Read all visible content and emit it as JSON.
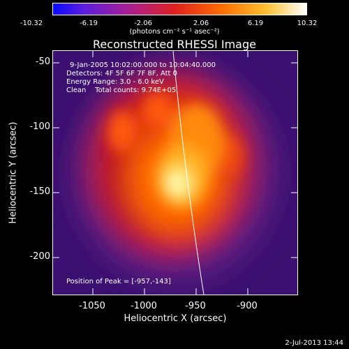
{
  "colorbar": {
    "tick_labels": [
      "-10.32",
      "-6.19",
      "-2.06",
      "2.06",
      "6.19",
      "10.32"
    ],
    "unit_label": "(photons cm⁻² s⁻¹ asec⁻²)",
    "colors": [
      "#1010ff",
      "#7a20c0",
      "#d0201a",
      "#ff7000",
      "#ffd040",
      "#ffffff"
    ]
  },
  "title": "Reconstructed RHESSI Image",
  "annotations": {
    "time_range": "9-Jan-2005 10:02:00.000 to 10:04:40.000",
    "detectors": "Detectors: 4F 5F 6F 7F 8F, Att 0",
    "energy_range": "Energy Range: 3.0 - 6.0 keV",
    "clean_counts": "Clean    Total counts: 9.74E+05",
    "peak_position": "Position of Peak = [-957,-143]"
  },
  "axes": {
    "xlabel": "Heliocentric X (arcsec)",
    "ylabel": "Heliocentric Y (arcsec)",
    "xticks": [
      "-1050",
      "-1000",
      "-950",
      "-900"
    ],
    "yticks": [
      "-50",
      "-100",
      "-150",
      "-200"
    ]
  },
  "timestamp": "2-Jul-2013 13:44"
}
